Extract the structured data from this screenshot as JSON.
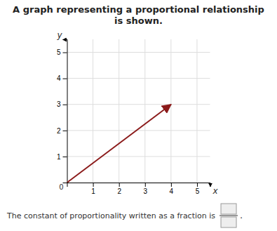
{
  "chart_data": {
    "type": "line",
    "title": "A graph representing a proportional relationship is shown.",
    "x": [
      0,
      4.0
    ],
    "values": [
      0,
      3.0
    ],
    "color": "#8B1A1A",
    "xlim": [
      0,
      5.5
    ],
    "ylim": [
      0,
      5.5
    ],
    "xticks": [
      1,
      2,
      3,
      4,
      5
    ],
    "yticks": [
      1,
      2,
      3,
      4,
      5
    ],
    "grid": true,
    "x_label": "x",
    "y_label": "y",
    "annotations": [
      {
        "text": "0",
        "x": 0,
        "y": 0
      }
    ],
    "footnote": [
      "The constant of proportionality written as a fraction is",
      "."
    ]
  }
}
